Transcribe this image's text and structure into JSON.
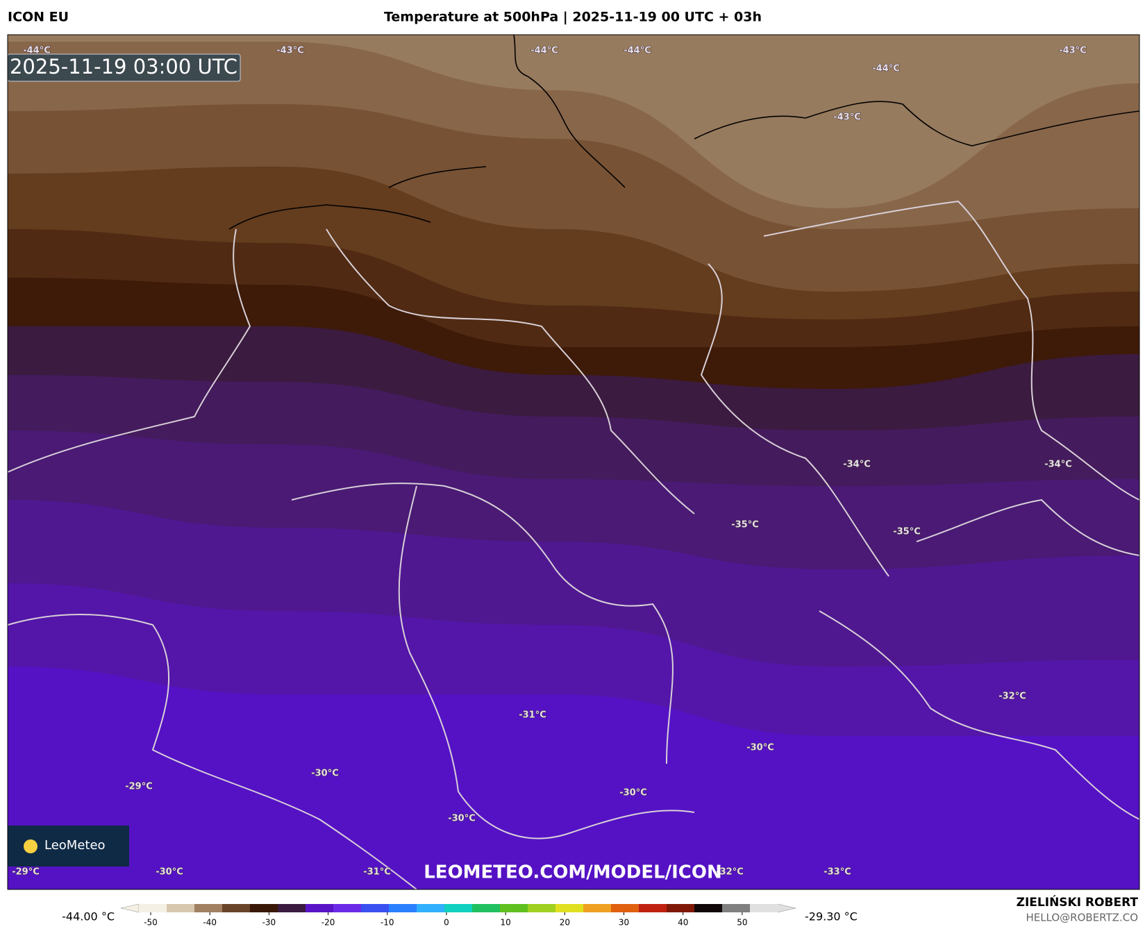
{
  "header": {
    "model": "ICON EU",
    "title": "Temperature at 500hPa | 2025-11-19 00 UTC + 03h"
  },
  "map": {
    "timestamp": "2025-11-19 03:00 UTC",
    "logo": "LeoMeteo",
    "watermark": "LEOMETEO.COM/MODEL/ICON",
    "contour_labels": [
      "-44°C",
      "-43°C",
      "-44°C",
      "-44°C",
      "-44°C",
      "-43°C",
      "-43°C",
      "-34°C",
      "-34°C",
      "-35°C",
      "-35°C",
      "-32°C",
      "-31°C",
      "-30°C",
      "-30°C",
      "-29°C",
      "-30°C",
      "-30°C",
      "-29°C",
      "-30°C",
      "-31°C",
      "-32°C",
      "-33°C"
    ]
  },
  "colorbar": {
    "min_label": "-44.00 °C",
    "max_label": "-29.30 °C",
    "xlim": [
      -52,
      56
    ],
    "xticks": [
      -50,
      -40,
      -30,
      -20,
      -10,
      0,
      10,
      20,
      30,
      40,
      50
    ],
    "colors": [
      "#f5f0e6",
      "#d8c8b0",
      "#a08060",
      "#6a4428",
      "#3a1808",
      "#3b1b40",
      "#5a14c8",
      "#6a2ae8",
      "#3a50f0",
      "#2a80ff",
      "#30b0ff",
      "#10d0c0",
      "#20c060",
      "#60c020",
      "#a0d020",
      "#e0e020",
      "#f0a020",
      "#e06010",
      "#c02010",
      "#801808",
      "#100808",
      "#808080",
      "#e0e0e0"
    ]
  },
  "footer": {
    "author": "ZIELIŃSKI ROBERT",
    "email": "HELLO@ROBERTZ.CO"
  }
}
